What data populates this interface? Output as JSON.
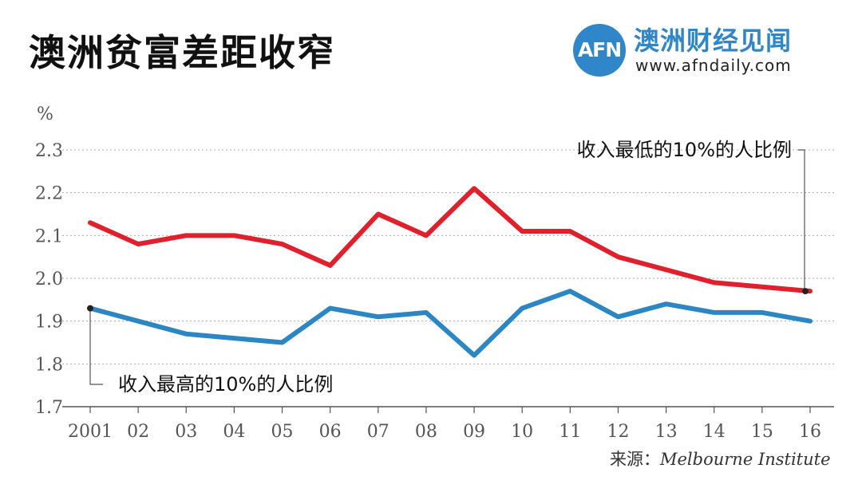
{
  "header": {
    "title": "澳洲贫富差距收窄"
  },
  "logo": {
    "mark": "AFN",
    "name": "澳洲财经见闻",
    "url": "www.afndaily.com"
  },
  "source": {
    "label": "来源：",
    "name": "Melbourne Institute"
  },
  "chart_data": {
    "type": "line",
    "ylabel": "%",
    "ylim": [
      1.7,
      2.3
    ],
    "yticks": [
      1.7,
      1.8,
      1.9,
      2.0,
      2.1,
      2.2,
      2.3
    ],
    "ytick_labels": [
      "1.7",
      "1.8",
      "1.9",
      "2.0",
      "2.1",
      "2.2",
      "2.3"
    ],
    "categories": [
      "2001",
      "02",
      "03",
      "04",
      "05",
      "06",
      "07",
      "08",
      "09",
      "10",
      "11",
      "12",
      "13",
      "14",
      "15",
      "16"
    ],
    "grid": "horizontal-dashed",
    "series": [
      {
        "annotation": "收入最低的10%的人比例",
        "color": "#e0202c",
        "values": [
          2.13,
          2.08,
          2.1,
          2.1,
          2.08,
          2.03,
          2.15,
          2.1,
          2.21,
          2.11,
          2.11,
          2.05,
          2.02,
          1.99,
          1.98,
          1.97
        ]
      },
      {
        "annotation": "收入最高的10%的人比例",
        "color": "#2b86c3",
        "values": [
          1.93,
          1.9,
          1.87,
          1.86,
          1.85,
          1.93,
          1.91,
          1.92,
          1.82,
          1.93,
          1.97,
          1.91,
          1.94,
          1.92,
          1.92,
          1.9
        ]
      }
    ]
  }
}
